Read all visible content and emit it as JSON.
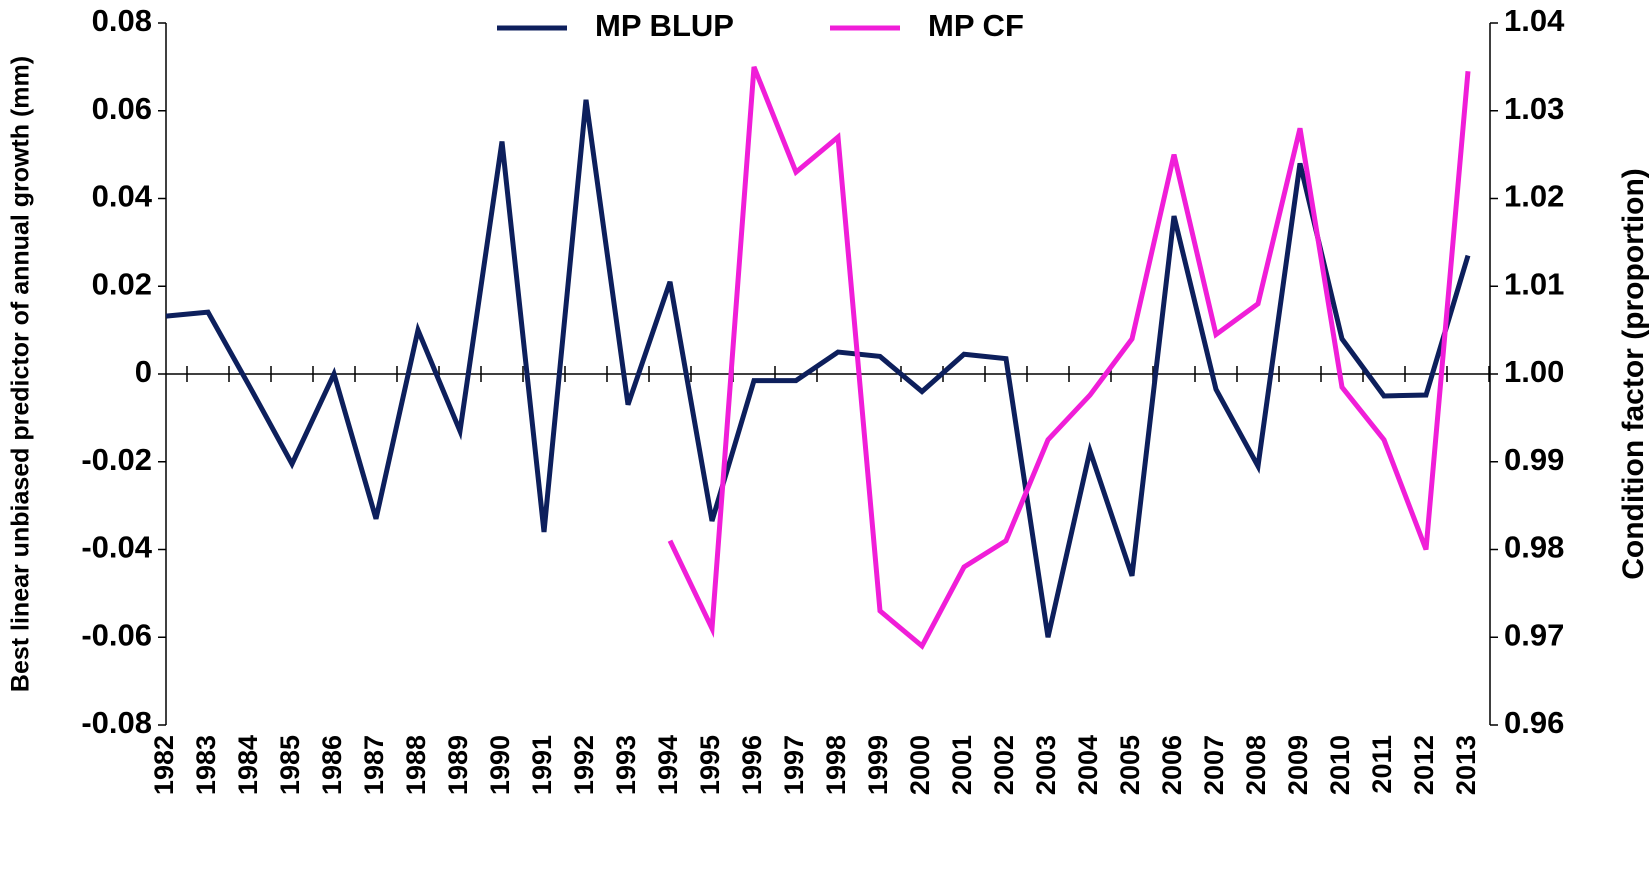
{
  "chart_data": {
    "type": "line",
    "y_label": "Best linear unbiased predictor of annual growth (mm)",
    "y2_label": "Condition factor (proportion)",
    "categories": [
      "1982",
      "1983",
      "1984",
      "1985",
      "1986",
      "1987",
      "1988",
      "1989",
      "1990",
      "1991",
      "1992",
      "1993",
      "1994",
      "1995",
      "1996",
      "1997",
      "1998",
      "1999",
      "2000",
      "2001",
      "2002",
      "2003",
      "2004",
      "2005",
      "2006",
      "2007",
      "2008",
      "2009",
      "2010",
      "2011",
      "2012",
      "2013"
    ],
    "series": [
      {
        "name": "MP BLUP",
        "color": "#0d1f5c",
        "values": [
          0.0132,
          0.0141,
          -0.003,
          -0.0205,
          0.0,
          -0.033,
          0.01,
          -0.013,
          0.053,
          -0.036,
          0.0625,
          -0.007,
          0.021,
          -0.0335,
          -0.0015,
          -0.0015,
          0.005,
          0.004,
          -0.004,
          0.0045,
          0.0035,
          -0.06,
          -0.0175,
          -0.046,
          0.036,
          -0.0035,
          -0.021,
          0.048,
          0.008,
          -0.005,
          -0.0048,
          0.027
        ]
      },
      {
        "name": "MP CF",
        "color": "#f01ed8",
        "axis": "y2",
        "values": [
          null,
          null,
          null,
          null,
          null,
          null,
          null,
          null,
          null,
          null,
          null,
          null,
          0.981,
          0.971,
          1.035,
          1.023,
          1.027,
          0.973,
          0.969,
          0.978,
          0.981,
          0.9925,
          0.9976,
          1.004,
          1.025,
          1.0045,
          1.008,
          1.028,
          0.9985,
          0.9925,
          0.98,
          1.0345
        ]
      }
    ],
    "ylim": [
      -0.08,
      0.08
    ],
    "yticks": [
      0.08,
      0.06,
      0.04,
      0.02,
      0,
      -0.02,
      -0.04,
      -0.06,
      -0.08
    ],
    "y2lim": [
      0.96,
      1.04
    ],
    "y2ticks": [
      1.04,
      1.03,
      1.02,
      1.01,
      {
        "value": 1.0,
        "label": "1.00"
      },
      0.99,
      0.98,
      0.97,
      0.96
    ],
    "legend": "top"
  }
}
